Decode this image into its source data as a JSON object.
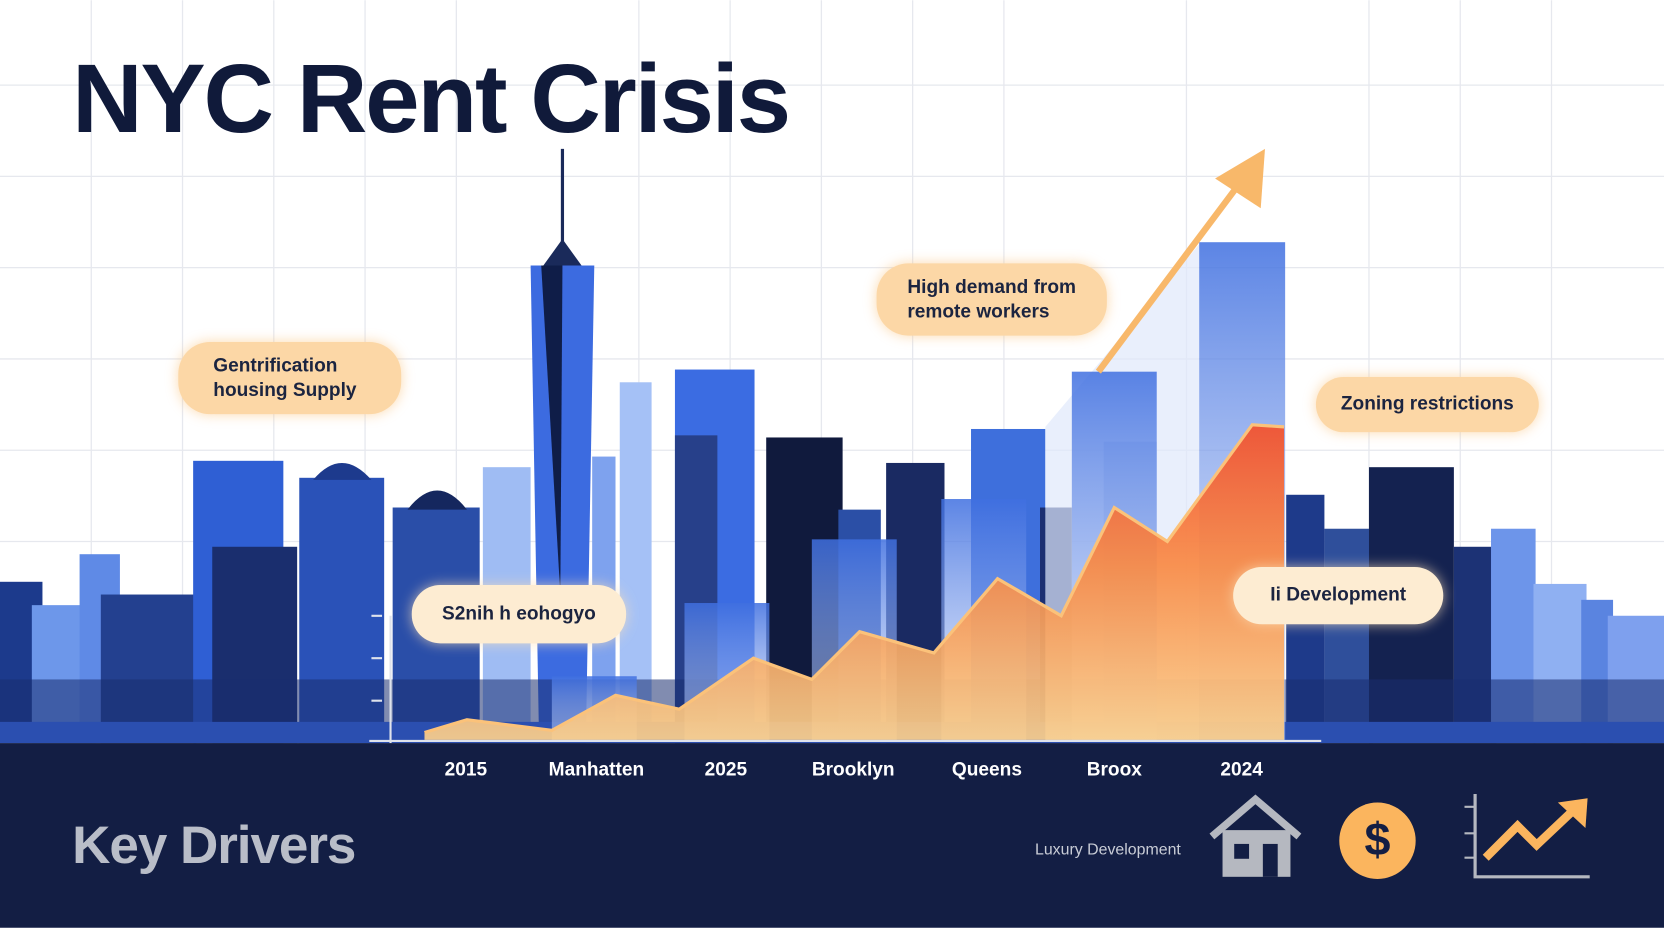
{
  "header": {
    "title": "NYC Rent Crisis"
  },
  "callouts": [
    {
      "lines": [
        "Gentrification",
        "housing Supply"
      ]
    },
    {
      "lines": [
        "High demand from",
        "remote workers"
      ]
    },
    {
      "lines": [
        "Zoning restrictions"
      ]
    },
    {
      "lines": [
        "S2nih h eohogyo"
      ]
    },
    {
      "lines": [
        "Ii Development"
      ]
    }
  ],
  "axis_labels": [
    "2015",
    "Manhatten",
    "2025",
    "Brooklyn",
    "Queens",
    "Broox",
    "2024"
  ],
  "footer": {
    "heading": "Key Drivers",
    "caption": "Luxury Development",
    "dollar_icon": "$"
  }
}
